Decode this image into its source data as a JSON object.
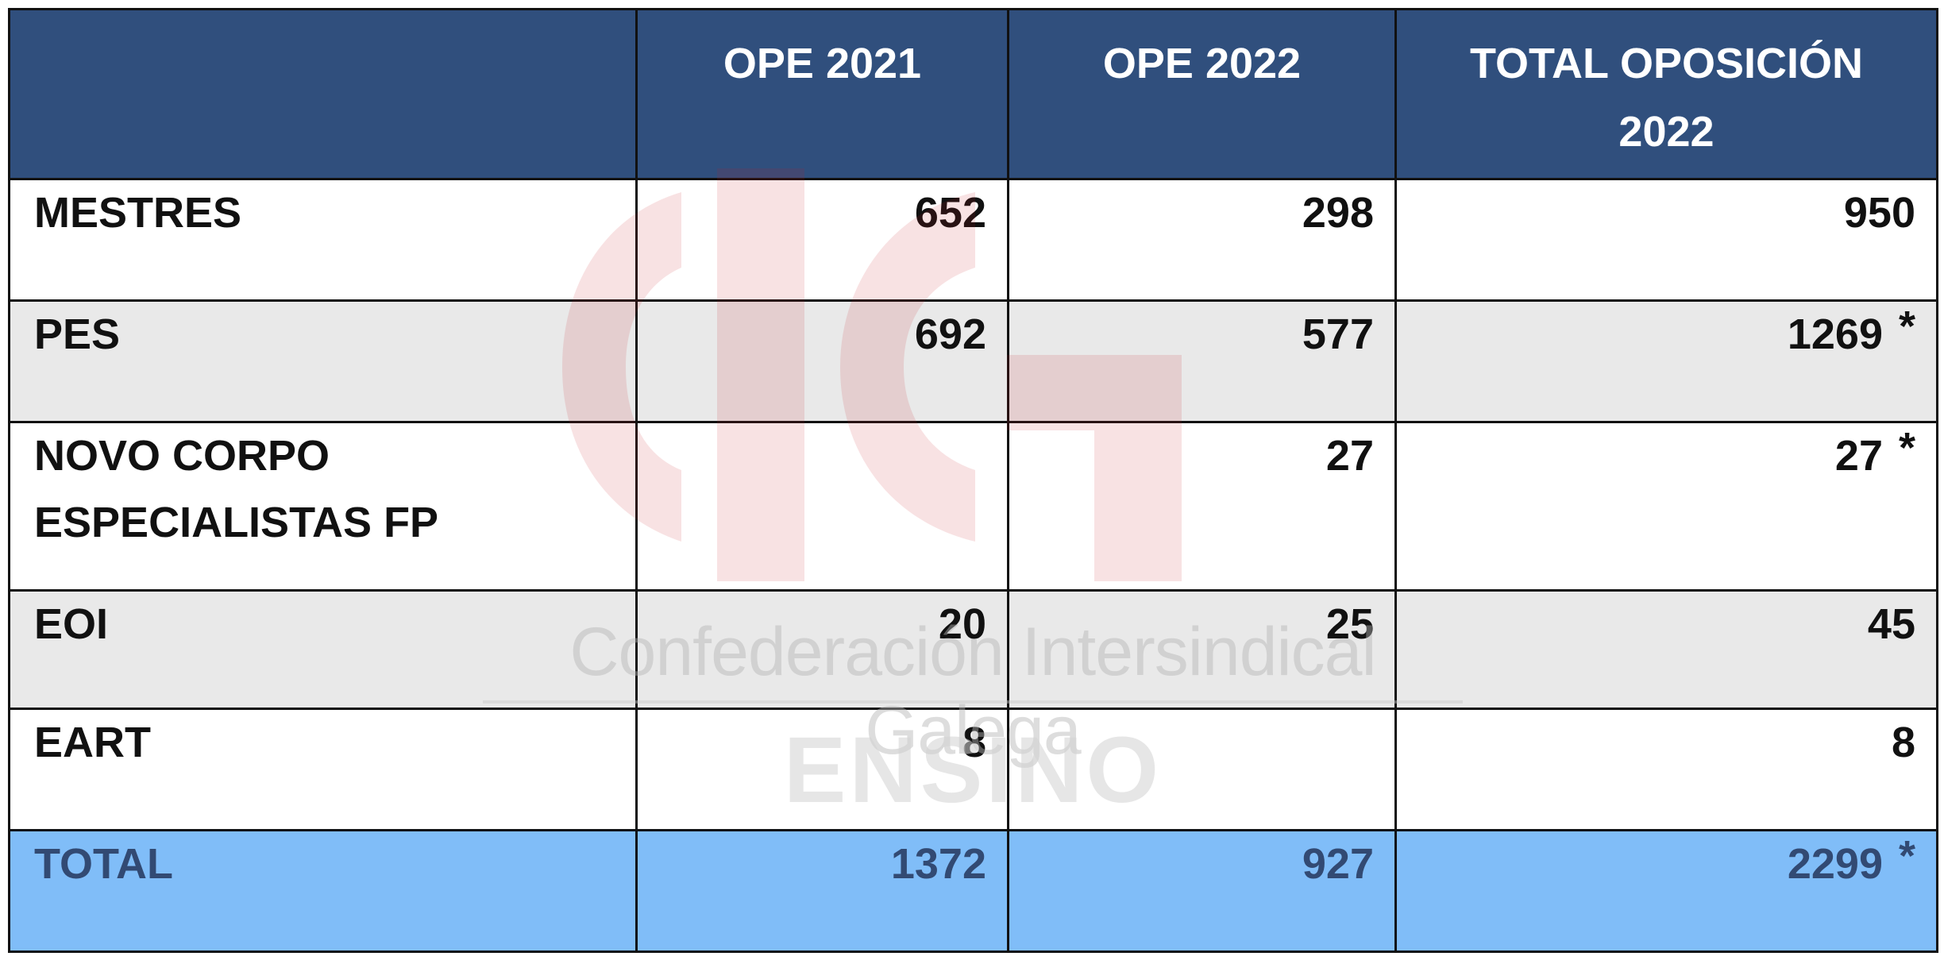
{
  "table": {
    "headers": [
      "",
      "OPE 2021",
      "OPE 2022",
      "TOTAL OPOSICIÓN 2022"
    ],
    "rows": [
      {
        "label": "MESTRES",
        "ope2021": "652",
        "ope2022": "298",
        "total": "950",
        "mark": ""
      },
      {
        "label": "PES",
        "ope2021": "692",
        "ope2022": "577",
        "total": "1269",
        "mark": "*"
      },
      {
        "label": "NOVO CORPO ESPECIALISTAS FP",
        "ope2021": "",
        "ope2022": "27",
        "total": "27",
        "mark": "*"
      },
      {
        "label": "EOI",
        "ope2021": "20",
        "ope2022": "25",
        "total": "45",
        "mark": ""
      },
      {
        "label": "EART",
        "ope2021": "8",
        "ope2022": "",
        "total": "8",
        "mark": ""
      }
    ],
    "total_row": {
      "label": "TOTAL",
      "ope2021": "1372",
      "ope2022": "927",
      "total": "2299",
      "mark": "*"
    }
  },
  "watermark": {
    "org_name": "Confederación Intersindical Galega",
    "sector": "ENSINO",
    "logo_text": "CIG"
  },
  "colors": {
    "header_bg": "#304f7d",
    "header_text": "#ffffff",
    "shaded_row": "#e4e4e4",
    "total_row_bg": "#80bdf8",
    "total_row_text": "#324a73",
    "logo_red": "#c81e2a"
  }
}
